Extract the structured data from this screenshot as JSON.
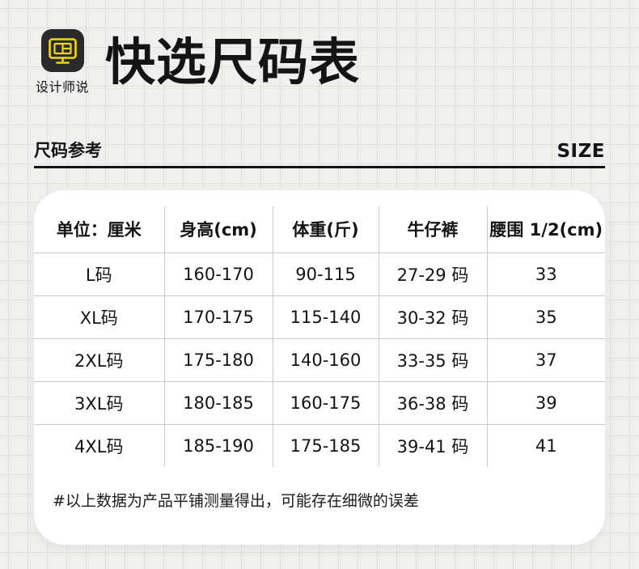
{
  "brand": {
    "logo_label": "设计师说",
    "icon": "monitor-icon"
  },
  "header": {
    "title": "快选尺码表"
  },
  "section": {
    "left_label": "尺码参考",
    "right_label": "SIZE"
  },
  "table": {
    "columns": [
      "单位：厘米",
      "身高(cm)",
      "体重(斤)",
      "牛仔裤",
      "腰围 1/2(cm)"
    ],
    "rows": [
      [
        "L码",
        "160-170",
        "90-115",
        "27-29 码",
        "33"
      ],
      [
        "XL码",
        "170-175",
        "115-140",
        "30-32 码",
        "35"
      ],
      [
        "2XL码",
        "175-180",
        "140-160",
        "33-35 码",
        "37"
      ],
      [
        "3XL码",
        "180-185",
        "160-175",
        "36-38 码",
        "39"
      ],
      [
        "4XL码",
        "185-190",
        "175-185",
        "39-41 码",
        "41"
      ]
    ]
  },
  "footnote": "#以上数据为产品平铺测量得出，可能存在细微的误差",
  "colors": {
    "page_bg": "#f0f0ee",
    "grid_line": "#e1e1df",
    "card_bg": "#ffffff",
    "table_line": "#c9c9c9",
    "text": "#141414",
    "icon_bg": "#2a2a2a",
    "icon_yellow": "#f0d613"
  }
}
